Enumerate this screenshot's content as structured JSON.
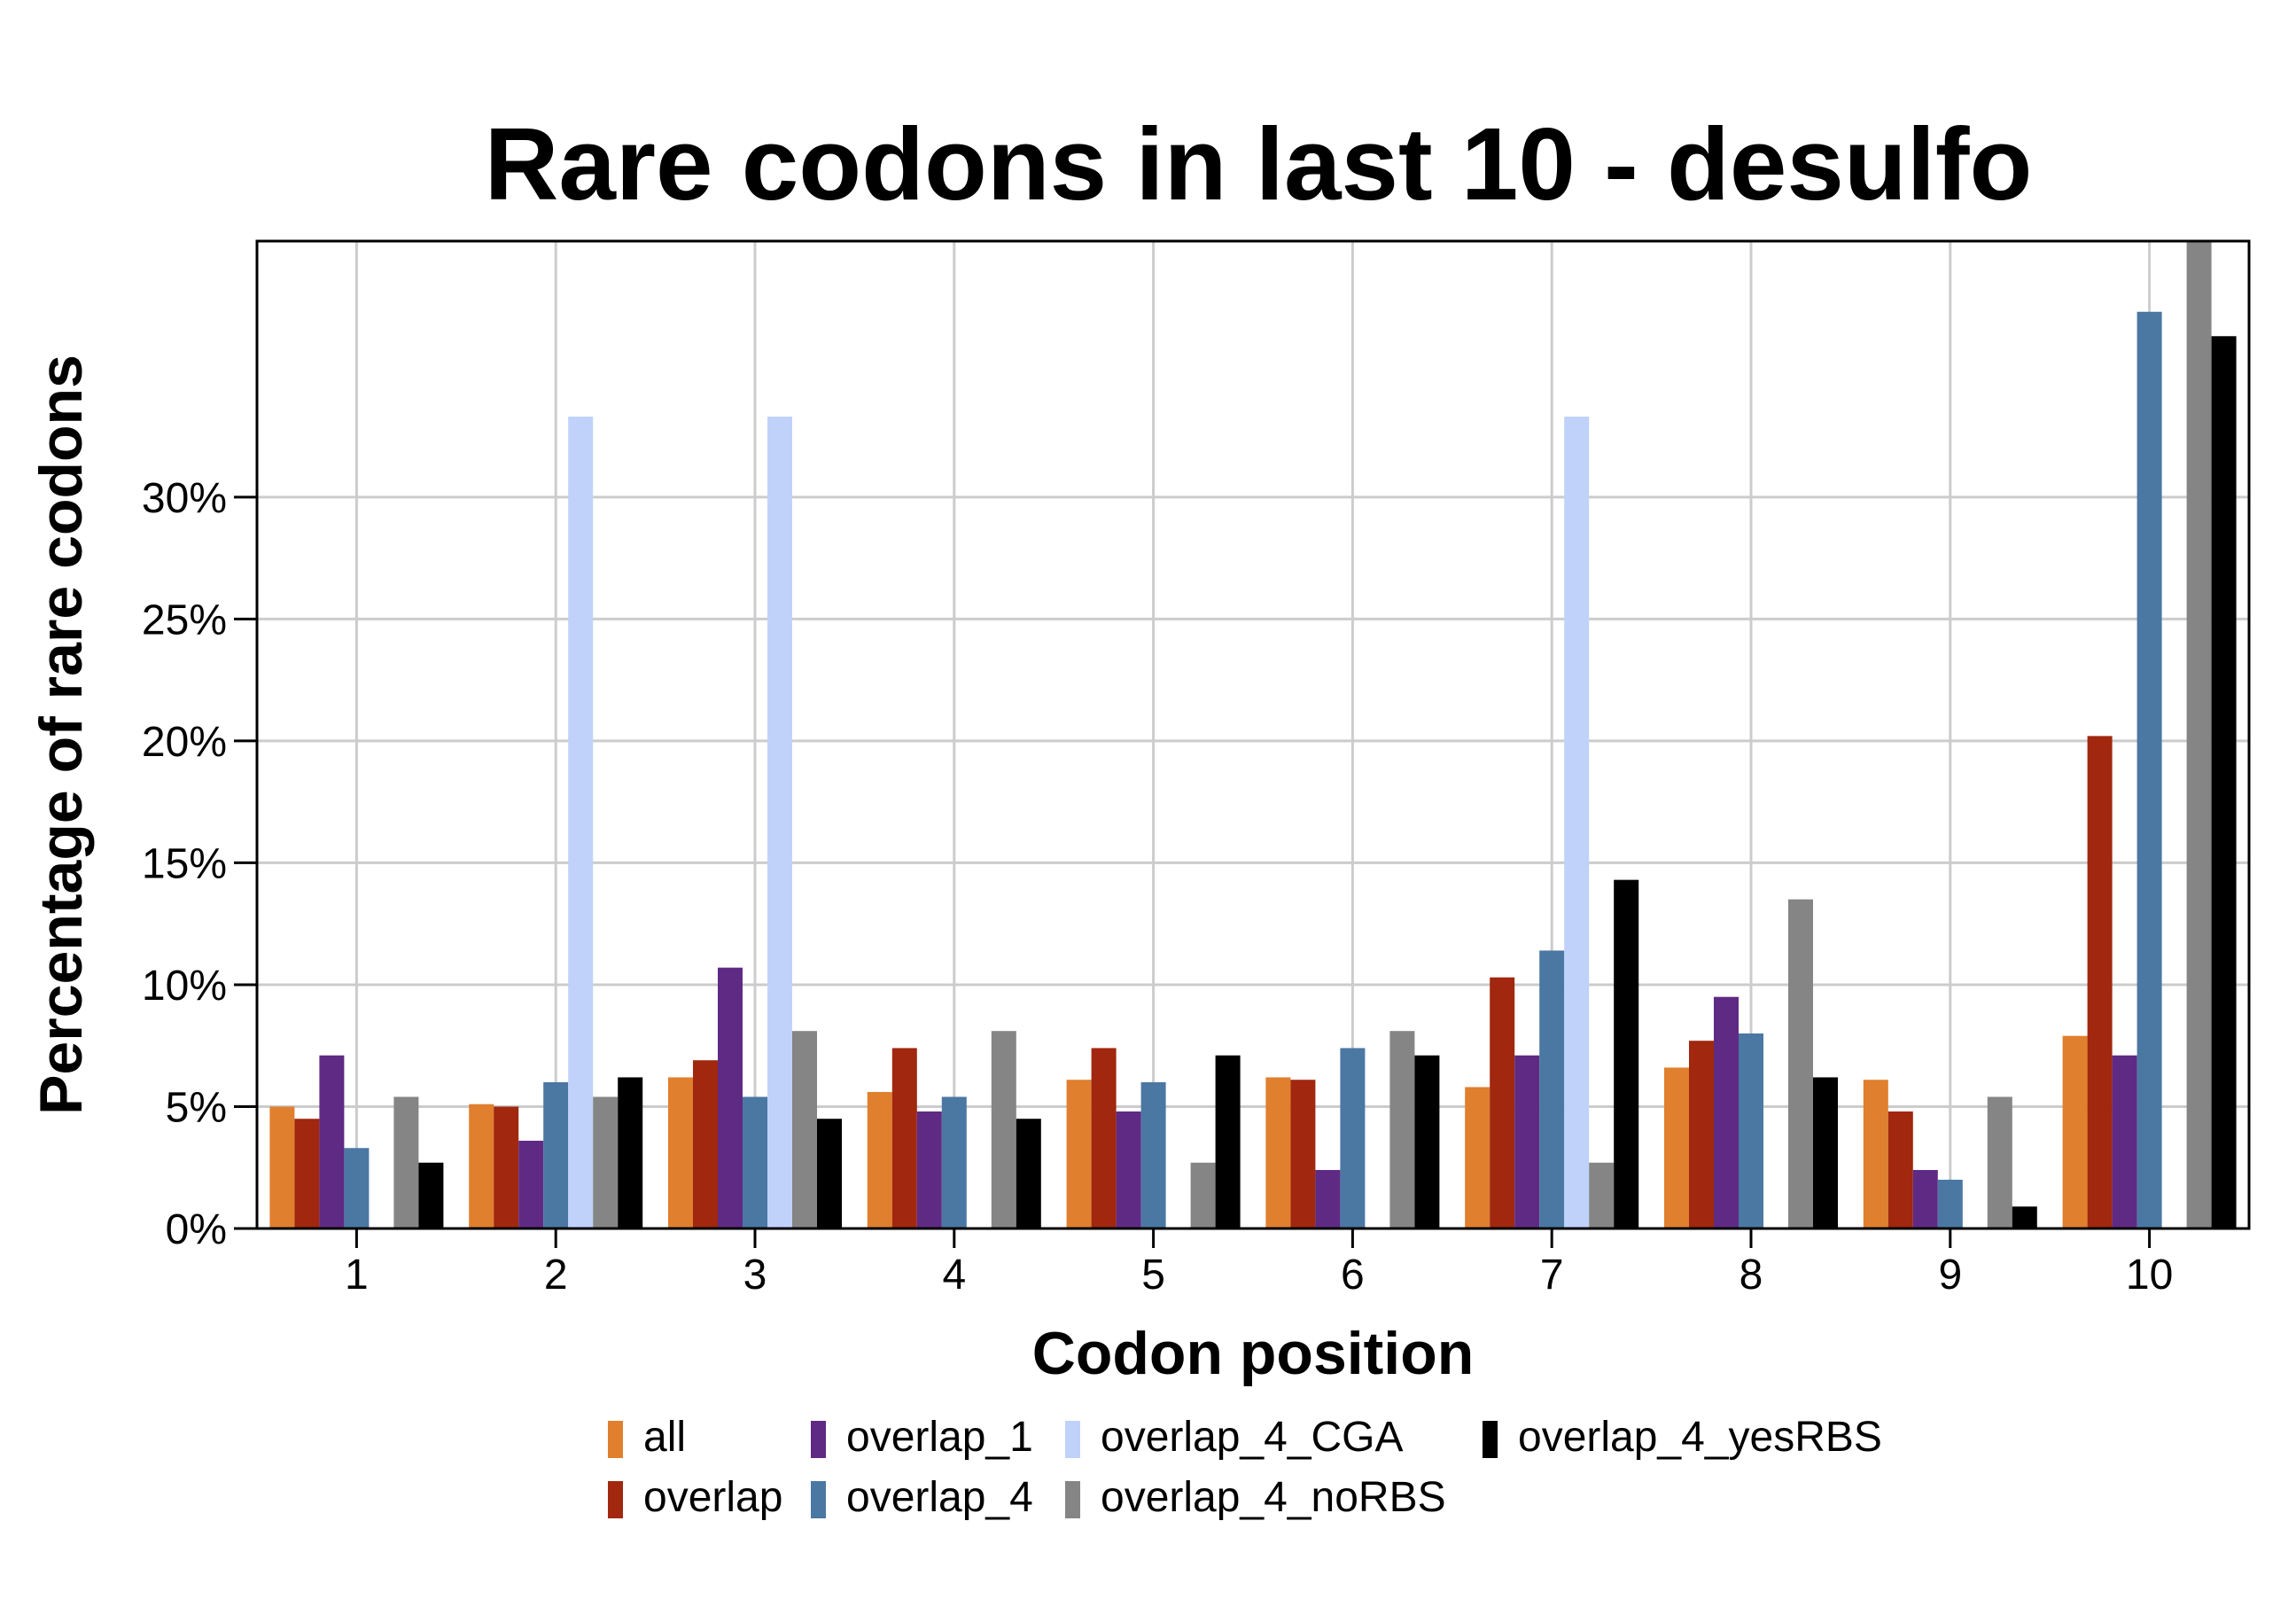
{
  "chart_data": {
    "type": "bar",
    "title": "Rare codons in last 10 - desulfo",
    "xlabel": "Codon position",
    "ylabel": "Percentage of rare codons",
    "categories": [
      "1",
      "2",
      "3",
      "4",
      "5",
      "6",
      "7",
      "8",
      "9",
      "10"
    ],
    "y_ticks": [
      0,
      5,
      10,
      15,
      20,
      25,
      30
    ],
    "y_tick_labels": [
      "0%",
      "5%",
      "10%",
      "15%",
      "20%",
      "25%",
      "30%"
    ],
    "ylim": [
      0,
      40.5
    ],
    "grid": true,
    "legend_position": "bottom",
    "series": [
      {
        "name": "all",
        "color": "#E07F2E",
        "values": [
          5.0,
          5.1,
          6.2,
          5.6,
          6.1,
          6.2,
          5.8,
          6.6,
          6.1,
          7.9
        ]
      },
      {
        "name": "overlap",
        "color": "#A1270E",
        "values": [
          4.5,
          5.0,
          6.9,
          7.4,
          7.4,
          6.1,
          10.3,
          7.7,
          4.8,
          20.2
        ]
      },
      {
        "name": "overlap_1",
        "color": "#5F2A84",
        "values": [
          7.1,
          3.6,
          10.7,
          4.8,
          4.8,
          2.4,
          7.1,
          9.5,
          2.4,
          7.1
        ]
      },
      {
        "name": "overlap_4",
        "color": "#4B77A3",
        "values": [
          3.3,
          6.0,
          5.4,
          5.4,
          6.0,
          7.4,
          11.4,
          8.0,
          2.0,
          37.6
        ]
      },
      {
        "name": "overlap_4_CGA",
        "color": "#C0D2FA",
        "values": [
          0,
          33.3,
          33.3,
          0,
          0,
          0,
          33.3,
          0,
          0,
          0
        ]
      },
      {
        "name": "overlap_4_noRBS",
        "color": "#858585",
        "values": [
          5.4,
          5.4,
          8.1,
          8.1,
          2.7,
          8.1,
          2.7,
          13.5,
          5.4,
          40.5
        ]
      },
      {
        "name": "overlap_4_yesRBS",
        "color": "#000000",
        "values": [
          2.7,
          6.2,
          4.5,
          4.5,
          7.1,
          7.1,
          14.3,
          6.2,
          0.9,
          36.6
        ]
      }
    ]
  }
}
